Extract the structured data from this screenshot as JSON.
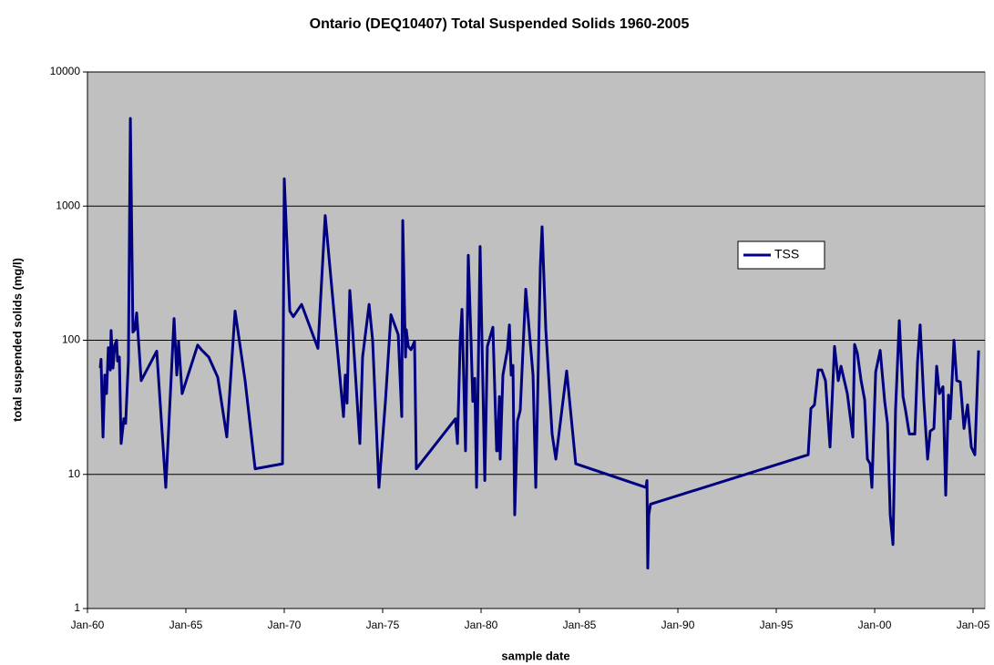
{
  "chart_data": {
    "type": "line",
    "title": "Ontario (DEQ10407) Total Suspended Solids 1960-2005",
    "x_label": "sample date",
    "y_label": "total suspended solids (mg/l)",
    "ylog": true,
    "grid": true,
    "legend": "right",
    "background": "#c0c0c0",
    "xlim": [
      1960,
      2005.6
    ],
    "ylim": [
      1,
      10000
    ],
    "xticks": [
      {
        "value": 1960,
        "label": "Jan-60"
      },
      {
        "value": 1965,
        "label": "Jan-65"
      },
      {
        "value": 1970,
        "label": "Jan-70"
      },
      {
        "value": 1975,
        "label": "Jan-75"
      },
      {
        "value": 1980,
        "label": "Jan-80"
      },
      {
        "value": 1985,
        "label": "Jan-85"
      },
      {
        "value": 1990,
        "label": "Jan-90"
      },
      {
        "value": 1995,
        "label": "Jan-95"
      },
      {
        "value": 2000,
        "label": "Jan-00"
      },
      {
        "value": 2005,
        "label": "Jan-05"
      }
    ],
    "yticks": [
      1,
      10,
      100,
      1000,
      10000
    ],
    "x": [
      1960.65,
      1960.69,
      1960.79,
      1960.88,
      1960.97,
      1961.06,
      1961.16,
      1961.2,
      1961.3,
      1961.39,
      1961.48,
      1961.53,
      1961.62,
      1961.71,
      1961.85,
      1961.94,
      1962.08,
      1962.18,
      1962.31,
      1962.41,
      1962.5,
      1962.73,
      1963.52,
      1963.98,
      1964.4,
      1964.54,
      1964.63,
      1964.81,
      1965.6,
      1965.79,
      1966.16,
      1966.62,
      1967.08,
      1967.5,
      1968.01,
      1968.52,
      1969.91,
      1970.0,
      1970.28,
      1970.46,
      1970.88,
      1971.71,
      1972.08,
      1973.01,
      1973.1,
      1973.19,
      1973.33,
      1973.43,
      1973.84,
      1973.98,
      1974.31,
      1974.49,
      1974.81,
      1975.14,
      1975.42,
      1975.79,
      1975.97,
      1976.02,
      1976.16,
      1976.2,
      1976.3,
      1976.44,
      1976.62,
      1976.71,
      1978.7,
      1978.8,
      1978.94,
      1979.03,
      1979.21,
      1979.35,
      1979.49,
      1979.58,
      1979.68,
      1979.77,
      1979.95,
      1980.19,
      1980.32,
      1980.6,
      1980.79,
      1980.83,
      1980.93,
      1980.97,
      1981.11,
      1981.34,
      1981.44,
      1981.53,
      1981.62,
      1981.71,
      1981.85,
      1981.99,
      1982.27,
      1982.64,
      1982.78,
      1983.01,
      1983.1,
      1983.29,
      1983.61,
      1983.8,
      1984.35,
      1984.81,
      1988.38,
      1988.43,
      1988.47,
      1988.52,
      1988.61,
      1996.62,
      1996.76,
      1996.94,
      1997.13,
      1997.31,
      1997.5,
      1997.73,
      1997.96,
      1998.15,
      1998.29,
      1998.61,
      1998.89,
      1998.98,
      1999.12,
      1999.31,
      1999.49,
      1999.63,
      1999.77,
      1999.86,
      2000.05,
      2000.28,
      2000.51,
      2000.65,
      2000.79,
      2000.93,
      2001.06,
      2001.25,
      2001.44,
      2001.57,
      2001.76,
      2002.04,
      2002.18,
      2002.31,
      2002.5,
      2002.69,
      2002.82,
      2003.01,
      2003.15,
      2003.29,
      2003.47,
      2003.61,
      2003.75,
      2003.84,
      2004.03,
      2004.17,
      2004.35,
      2004.54,
      2004.72,
      2004.91,
      2005.09,
      2005.28
    ],
    "series": [
      {
        "name": "TSS",
        "color": "#000080",
        "values": [
          62,
          72,
          19,
          55,
          40,
          88,
          60,
          118,
          62,
          92,
          100,
          70,
          75,
          17,
          26,
          24,
          70,
          4500,
          115,
          120,
          160,
          50,
          83,
          8,
          145,
          55,
          98,
          40,
          92,
          85,
          75,
          53,
          19,
          165,
          50,
          11,
          12,
          1600,
          165,
          150,
          185,
          87,
          850,
          27,
          55,
          34,
          235,
          150,
          17,
          75,
          185,
          100,
          8,
          35,
          155,
          110,
          27,
          780,
          75,
          120,
          90,
          85,
          98,
          11,
          26,
          17,
          100,
          170,
          15,
          430,
          100,
          35,
          52,
          8,
          500,
          9,
          90,
          125,
          15,
          15,
          38,
          13,
          55,
          85,
          130,
          55,
          65,
          5,
          25,
          30,
          240,
          55,
          8,
          350,
          700,
          120,
          20,
          13,
          59,
          12,
          8,
          9,
          2,
          5,
          6,
          14,
          31,
          33,
          60,
          60,
          50,
          16,
          90,
          50,
          64,
          40,
          19,
          93,
          80,
          50,
          36,
          13,
          12,
          8,
          58,
          84,
          35,
          24,
          5,
          3,
          30,
          140,
          38,
          30,
          20,
          20,
          70,
          130,
          35,
          13,
          21,
          22,
          64,
          40,
          45,
          7,
          39,
          26,
          100,
          50,
          49,
          22,
          33,
          16,
          14,
          84
        ]
      }
    ]
  }
}
